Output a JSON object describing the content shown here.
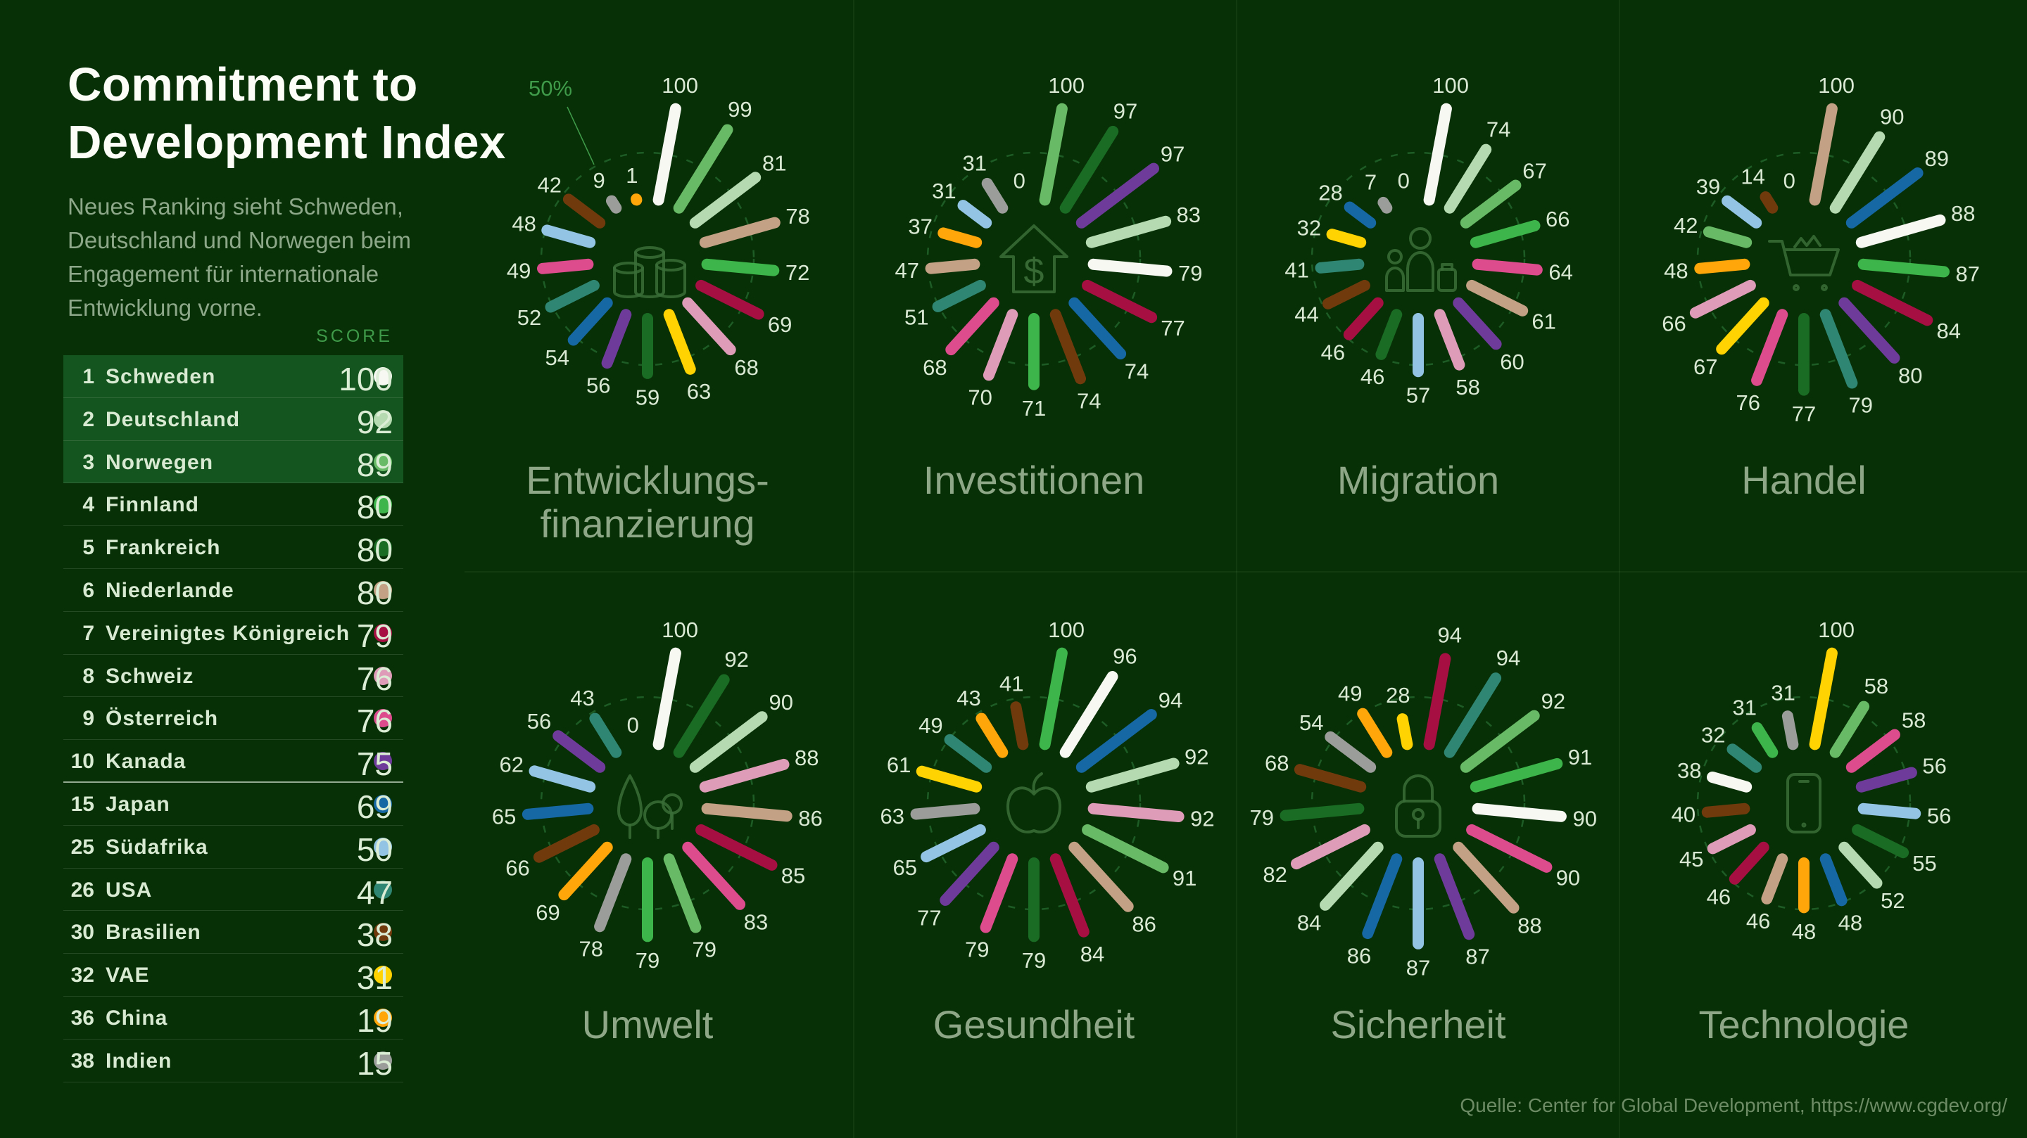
{
  "header": {
    "title": "Commitment to\nDevelopment Index",
    "subtitle": "Neues Ranking sieht Schweden,\nDeutschland und Norwegen beim\nEngagement für internationale\nEntwicklung vorne."
  },
  "palette": {
    "Schweden": "#f6f8f1",
    "Deutschland": "#b5dab1",
    "Norwegen": "#68ba66",
    "Finnland": "#3db54a",
    "Frankreich": "#1a6b24",
    "Niederlande": "#c2a184",
    "Vereinigtes Königreich": "#a60f42",
    "Schweiz": "#df9cb8",
    "Österreich": "#dd4c8d",
    "Kanada": "#6f3b9a",
    "Japan": "#1668a5",
    "Südafrika": "#93c4e4",
    "USA": "#2f8673",
    "Brasilien": "#713a0d",
    "VAE": "#ffd202",
    "China": "#ffa60a",
    "Indien": "#9b9d9a"
  },
  "ranking": {
    "score_header": "SCORE",
    "rows": [
      {
        "rank": 1,
        "country": "Schweden",
        "score": 100
      },
      {
        "rank": 2,
        "country": "Deutschland",
        "score": 92
      },
      {
        "rank": 3,
        "country": "Norwegen",
        "score": 89
      },
      {
        "rank": 4,
        "country": "Finnland",
        "score": 80
      },
      {
        "rank": 5,
        "country": "Frankreich",
        "score": 80
      },
      {
        "rank": 6,
        "country": "Niederlande",
        "score": 80
      },
      {
        "rank": 7,
        "country": "Vereinigtes Königreich",
        "score": 79
      },
      {
        "rank": 8,
        "country": "Schweiz",
        "score": 76
      },
      {
        "rank": 9,
        "country": "Österreich",
        "score": 76
      },
      {
        "rank": 10,
        "country": "Kanada",
        "score": 75
      },
      {
        "rank": 15,
        "country": "Japan",
        "score": 69
      },
      {
        "rank": 25,
        "country": "Südafrika",
        "score": 50
      },
      {
        "rank": 26,
        "country": "USA",
        "score": 47
      },
      {
        "rank": 30,
        "country": "Brasilien",
        "score": 38
      },
      {
        "rank": 32,
        "country": "VAE",
        "score": 31
      },
      {
        "rank": 36,
        "country": "China",
        "score": 19
      },
      {
        "rank": 38,
        "country": "Indien",
        "score": 15
      }
    ]
  },
  "chart_data": [
    {
      "type": "radial-bar",
      "title": "Entwicklungs-\nfinanzierung",
      "slug": "entwicklungsfinanzierung",
      "icon": "coins-icon",
      "max": 100,
      "ring_value": 50,
      "ring_label": "50%",
      "spokes": [
        {
          "country": "Schweden",
          "value": 100
        },
        {
          "country": "Norwegen",
          "value": 99
        },
        {
          "country": "Deutschland",
          "value": 81
        },
        {
          "country": "Niederlande",
          "value": 78
        },
        {
          "country": "Finnland",
          "value": 72
        },
        {
          "country": "Vereinigtes Königreich",
          "value": 69
        },
        {
          "country": "Schweiz",
          "value": 68
        },
        {
          "country": "VAE",
          "value": 63
        },
        {
          "country": "Frankreich",
          "value": 59
        },
        {
          "country": "Kanada",
          "value": 56
        },
        {
          "country": "Japan",
          "value": 54
        },
        {
          "country": "USA",
          "value": 52
        },
        {
          "country": "Österreich",
          "value": 49
        },
        {
          "country": "Südafrika",
          "value": 48
        },
        {
          "country": "Brasilien",
          "value": 42
        },
        {
          "country": "Indien",
          "value": 9
        },
        {
          "country": "China",
          "value": 1
        }
      ]
    },
    {
      "type": "radial-bar",
      "title": "Investitionen",
      "slug": "investitionen",
      "icon": "house-dollar-icon",
      "max": 100,
      "ring_value": 50,
      "spokes": [
        {
          "country": "Norwegen",
          "value": 100
        },
        {
          "country": "Frankreich",
          "value": 97
        },
        {
          "country": "Kanada",
          "value": 97
        },
        {
          "country": "Deutschland",
          "value": 83
        },
        {
          "country": "Schweden",
          "value": 79
        },
        {
          "country": "Vereinigtes Königreich",
          "value": 77
        },
        {
          "country": "Japan",
          "value": 74
        },
        {
          "country": "Brasilien",
          "value": 74
        },
        {
          "country": "Finnland",
          "value": 71
        },
        {
          "country": "Schweiz",
          "value": 70
        },
        {
          "country": "Österreich",
          "value": 68
        },
        {
          "country": "USA",
          "value": 51
        },
        {
          "country": "Niederlande",
          "value": 47
        },
        {
          "country": "China",
          "value": 37
        },
        {
          "country": "Südafrika",
          "value": 31
        },
        {
          "country": "Indien",
          "value": 31
        },
        {
          "country": "VAE",
          "value": 0
        }
      ]
    },
    {
      "type": "radial-bar",
      "title": "Migration",
      "slug": "migration",
      "icon": "people-icon",
      "max": 100,
      "ring_value": 50,
      "spokes": [
        {
          "country": "Schweden",
          "value": 100
        },
        {
          "country": "Deutschland",
          "value": 74
        },
        {
          "country": "Norwegen",
          "value": 67
        },
        {
          "country": "Finnland",
          "value": 66
        },
        {
          "country": "Österreich",
          "value": 64
        },
        {
          "country": "Niederlande",
          "value": 61
        },
        {
          "country": "Kanada",
          "value": 60
        },
        {
          "country": "Schweiz",
          "value": 58
        },
        {
          "country": "Südafrika",
          "value": 57
        },
        {
          "country": "Frankreich",
          "value": 46
        },
        {
          "country": "Vereinigtes Königreich",
          "value": 46
        },
        {
          "country": "Brasilien",
          "value": 44
        },
        {
          "country": "USA",
          "value": 41
        },
        {
          "country": "VAE",
          "value": 32
        },
        {
          "country": "Japan",
          "value": 28
        },
        {
          "country": "Indien",
          "value": 7
        },
        {
          "country": "China",
          "value": 0
        }
      ]
    },
    {
      "type": "radial-bar",
      "title": "Handel",
      "slug": "handel",
      "icon": "cart-icon",
      "max": 100,
      "ring_value": 50,
      "spokes": [
        {
          "country": "Niederlande",
          "value": 100
        },
        {
          "country": "Deutschland",
          "value": 90
        },
        {
          "country": "Japan",
          "value": 89
        },
        {
          "country": "Schweden",
          "value": 88
        },
        {
          "country": "Finnland",
          "value": 87
        },
        {
          "country": "Vereinigtes Königreich",
          "value": 84
        },
        {
          "country": "Kanada",
          "value": 80
        },
        {
          "country": "USA",
          "value": 79
        },
        {
          "country": "Frankreich",
          "value": 77
        },
        {
          "country": "Österreich",
          "value": 76
        },
        {
          "country": "VAE",
          "value": 67
        },
        {
          "country": "Schweiz",
          "value": 66
        },
        {
          "country": "China",
          "value": 48
        },
        {
          "country": "Norwegen",
          "value": 42
        },
        {
          "country": "Südafrika",
          "value": 39
        },
        {
          "country": "Brasilien",
          "value": 14
        },
        {
          "country": "Indien",
          "value": 0
        }
      ]
    },
    {
      "type": "radial-bar",
      "title": "Umwelt",
      "slug": "umwelt",
      "icon": "trees-icon",
      "max": 100,
      "ring_value": 50,
      "spokes": [
        {
          "country": "Schweden",
          "value": 100
        },
        {
          "country": "Frankreich",
          "value": 92
        },
        {
          "country": "Deutschland",
          "value": 90
        },
        {
          "country": "Schweiz",
          "value": 88
        },
        {
          "country": "Niederlande",
          "value": 86
        },
        {
          "country": "Vereinigtes Königreich",
          "value": 85
        },
        {
          "country": "Österreich",
          "value": 83
        },
        {
          "country": "Norwegen",
          "value": 79
        },
        {
          "country": "Finnland",
          "value": 79
        },
        {
          "country": "Indien",
          "value": 78
        },
        {
          "country": "China",
          "value": 69
        },
        {
          "country": "Brasilien",
          "value": 66
        },
        {
          "country": "Japan",
          "value": 65
        },
        {
          "country": "Südafrika",
          "value": 62
        },
        {
          "country": "Kanada",
          "value": 56
        },
        {
          "country": "USA",
          "value": 43
        },
        {
          "country": "VAE",
          "value": 0
        }
      ]
    },
    {
      "type": "radial-bar",
      "title": "Gesundheit",
      "slug": "gesundheit",
      "icon": "apple-icon",
      "max": 100,
      "ring_value": 50,
      "spokes": [
        {
          "country": "Finnland",
          "value": 100
        },
        {
          "country": "Schweden",
          "value": 96
        },
        {
          "country": "Japan",
          "value": 94
        },
        {
          "country": "Deutschland",
          "value": 92
        },
        {
          "country": "Schweiz",
          "value": 92
        },
        {
          "country": "Norwegen",
          "value": 91
        },
        {
          "country": "Niederlande",
          "value": 86
        },
        {
          "country": "Vereinigtes Königreich",
          "value": 84
        },
        {
          "country": "Frankreich",
          "value": 79
        },
        {
          "country": "Österreich",
          "value": 79
        },
        {
          "country": "Kanada",
          "value": 77
        },
        {
          "country": "Südafrika",
          "value": 65
        },
        {
          "country": "Indien",
          "value": 63
        },
        {
          "country": "VAE",
          "value": 61
        },
        {
          "country": "USA",
          "value": 49
        },
        {
          "country": "China",
          "value": 43
        },
        {
          "country": "Brasilien",
          "value": 41
        }
      ]
    },
    {
      "type": "radial-bar",
      "title": "Sicherheit",
      "slug": "sicherheit",
      "icon": "lock-icon",
      "max": 100,
      "ring_value": 50,
      "spokes": [
        {
          "country": "Vereinigtes Königreich",
          "value": 94
        },
        {
          "country": "USA",
          "value": 94
        },
        {
          "country": "Norwegen",
          "value": 92
        },
        {
          "country": "Finnland",
          "value": 91
        },
        {
          "country": "Schweden",
          "value": 90
        },
        {
          "country": "Österreich",
          "value": 90
        },
        {
          "country": "Niederlande",
          "value": 88
        },
        {
          "country": "Kanada",
          "value": 87
        },
        {
          "country": "Südafrika",
          "value": 87
        },
        {
          "country": "Japan",
          "value": 86
        },
        {
          "country": "Deutschland",
          "value": 84
        },
        {
          "country": "Schweiz",
          "value": 82
        },
        {
          "country": "Frankreich",
          "value": 79
        },
        {
          "country": "Brasilien",
          "value": 68
        },
        {
          "country": "Indien",
          "value": 54
        },
        {
          "country": "China",
          "value": 49
        },
        {
          "country": "VAE",
          "value": 28
        }
      ]
    },
    {
      "type": "radial-bar",
      "title": "Technologie",
      "slug": "technologie",
      "icon": "phone-icon",
      "max": 100,
      "ring_value": 50,
      "spokes": [
        {
          "country": "VAE",
          "value": 100
        },
        {
          "country": "Norwegen",
          "value": 58
        },
        {
          "country": "Österreich",
          "value": 58
        },
        {
          "country": "Kanada",
          "value": 56
        },
        {
          "country": "Südafrika",
          "value": 56
        },
        {
          "country": "Frankreich",
          "value": 55
        },
        {
          "country": "Deutschland",
          "value": 52
        },
        {
          "country": "Japan",
          "value": 48
        },
        {
          "country": "China",
          "value": 48
        },
        {
          "country": "Niederlande",
          "value": 46
        },
        {
          "country": "Vereinigtes Königreich",
          "value": 46
        },
        {
          "country": "Schweiz",
          "value": 45
        },
        {
          "country": "Brasilien",
          "value": 40
        },
        {
          "country": "Schweden",
          "value": 38
        },
        {
          "country": "USA",
          "value": 32
        },
        {
          "country": "Finnland",
          "value": 31
        },
        {
          "country": "Indien",
          "value": 31
        }
      ]
    }
  ],
  "footer": {
    "source": "Quelle: Center for Global Development, https://www.cgdev.org/"
  }
}
